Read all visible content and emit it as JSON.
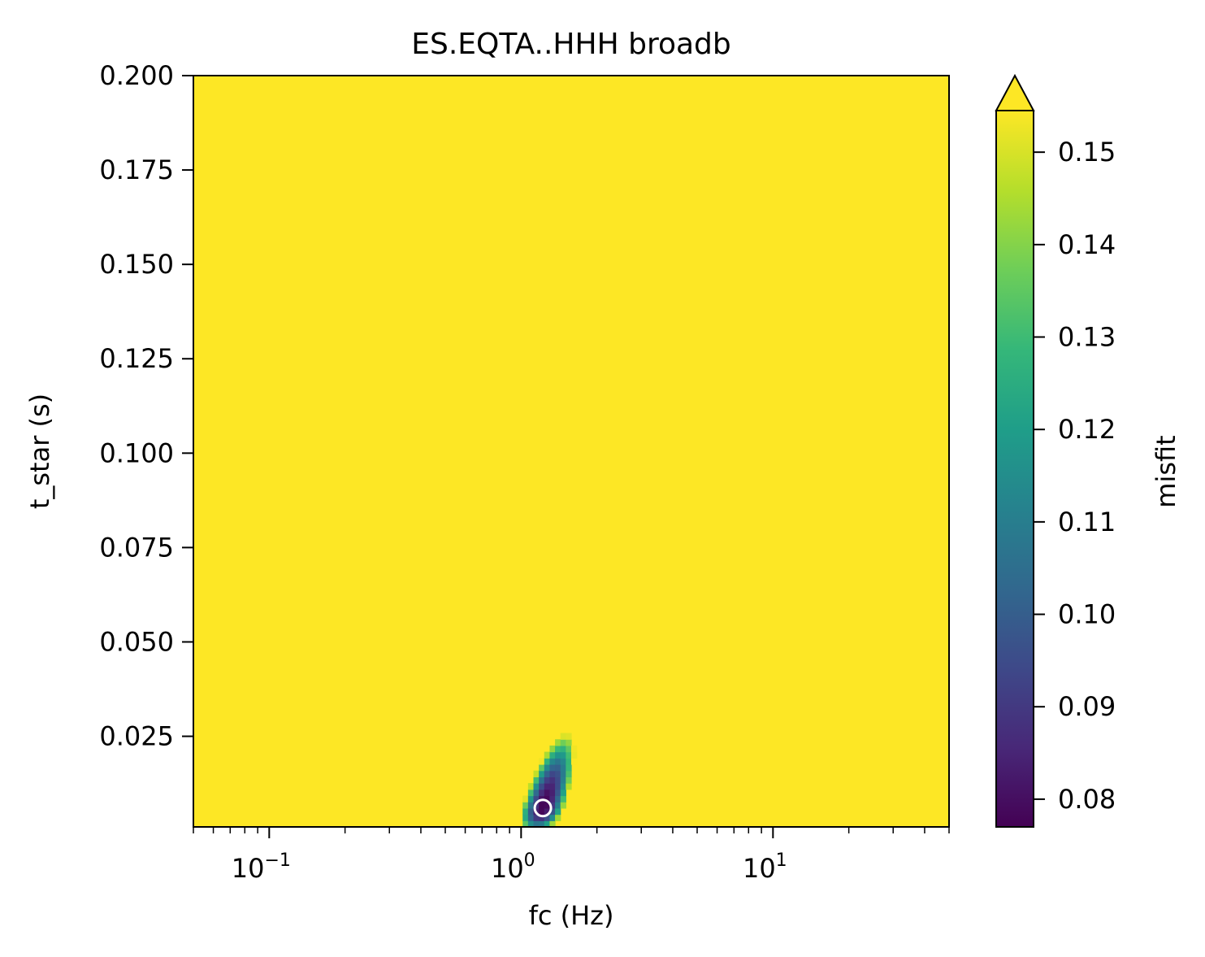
{
  "chart_data": {
    "type": "heatmap",
    "title": "ES.EQTA..HHH broadb",
    "xlabel": "fc (Hz)",
    "ylabel": "t_star (s)",
    "x_scale": "log",
    "xlim": [
      0.05,
      50
    ],
    "ylim": [
      0.001,
      0.2
    ],
    "x_ticks": [
      {
        "value": 0.1,
        "base": "10",
        "exp": "−1"
      },
      {
        "value": 1,
        "base": "10",
        "exp": "0"
      },
      {
        "value": 10,
        "base": "10",
        "exp": "1"
      }
    ],
    "y_ticks": [
      {
        "value": 0.025,
        "label": "0.025"
      },
      {
        "value": 0.05,
        "label": "0.050"
      },
      {
        "value": 0.075,
        "label": "0.075"
      },
      {
        "value": 0.1,
        "label": "0.100"
      },
      {
        "value": 0.125,
        "label": "0.125"
      },
      {
        "value": 0.15,
        "label": "0.150"
      },
      {
        "value": 0.175,
        "label": "0.175"
      },
      {
        "value": 0.2,
        "label": "0.200"
      }
    ],
    "colorbar": {
      "label": "misfit",
      "colormap": "viridis",
      "vmin": 0.077,
      "vmax": 0.1545,
      "extend": "max",
      "ticks": [
        {
          "value": 0.08,
          "label": "0.08"
        },
        {
          "value": 0.09,
          "label": "0.09"
        },
        {
          "value": 0.1,
          "label": "0.10"
        },
        {
          "value": 0.11,
          "label": "0.11"
        },
        {
          "value": 0.12,
          "label": "0.12"
        },
        {
          "value": 0.13,
          "label": "0.13"
        },
        {
          "value": 0.14,
          "label": "0.14"
        },
        {
          "value": 0.15,
          "label": "0.15"
        }
      ]
    },
    "background_value": 0.16,
    "minimum": {
      "fc": 1.22,
      "t_star": 0.006,
      "misfit": 0.077
    },
    "low_misfit_region": {
      "center_fc": 1.35,
      "center_t_star": 0.012,
      "fc_range": [
        0.9,
        2.0
      ],
      "t_star_range": [
        0.001,
        0.031
      ]
    },
    "marker": {
      "fc": 1.22,
      "t_star": 0.006,
      "style": "open circle",
      "color": "#ffffff"
    },
    "colors": {
      "viridis": [
        "#440154",
        "#482878",
        "#3e4989",
        "#31688e",
        "#26828e",
        "#1f9e89",
        "#35b779",
        "#6ece58",
        "#b5de2b",
        "#fde725"
      ]
    }
  }
}
